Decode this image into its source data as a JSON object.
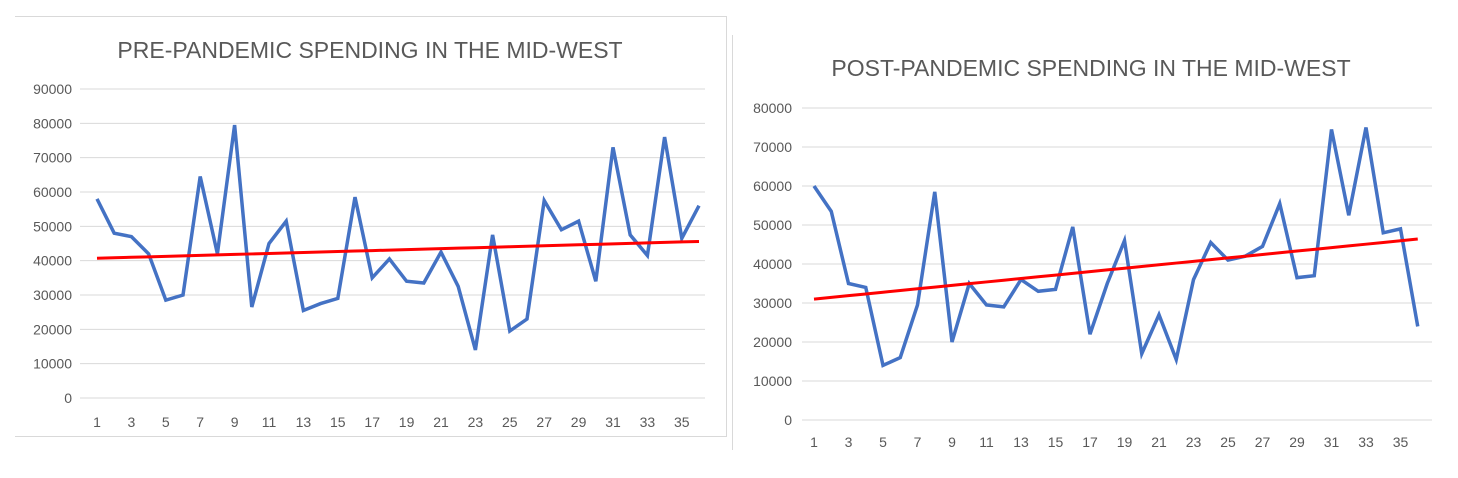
{
  "chart_data": [
    {
      "type": "line",
      "title": "PRE-PANDEMIC SPENDING IN THE MID-WEST",
      "xlabel": "",
      "ylabel": "",
      "ylim": [
        0,
        90000
      ],
      "yticks": [
        "0",
        "10000",
        "20000",
        "30000",
        "40000",
        "50000",
        "60000",
        "70000",
        "80000",
        "90000"
      ],
      "x_tick_labels": [
        "1",
        "3",
        "5",
        "7",
        "9",
        "11",
        "13",
        "15",
        "17",
        "19",
        "21",
        "23",
        "25",
        "27",
        "29",
        "31",
        "33",
        "35"
      ],
      "x": [
        1,
        2,
        3,
        4,
        5,
        6,
        7,
        8,
        9,
        10,
        11,
        12,
        13,
        14,
        15,
        16,
        17,
        18,
        19,
        20,
        21,
        22,
        23,
        24,
        25,
        26,
        27,
        28,
        29,
        30,
        31,
        32,
        33,
        34,
        35,
        36
      ],
      "grid": true,
      "legend": "none",
      "series": [
        {
          "values": [
            58000,
            48000,
            47000,
            42000,
            28500,
            30000,
            64500,
            42000,
            79500,
            26500,
            45000,
            51500,
            25500,
            27500,
            29000,
            58500,
            35000,
            40500,
            34000,
            33500,
            42500,
            32500,
            14000,
            47500,
            19500,
            23000,
            57500,
            49000,
            51500,
            34000,
            73000,
            47500,
            41500,
            76000,
            46500,
            56000
          ],
          "color": "#4472c4"
        },
        {
          "values": [
            40700,
            40840,
            40980,
            41120,
            41260,
            41400,
            41540,
            41680,
            41820,
            41960,
            42100,
            42240,
            42380,
            42520,
            42660,
            42800,
            42940,
            43080,
            43220,
            43360,
            43500,
            43640,
            43780,
            43920,
            44060,
            44200,
            44340,
            44480,
            44620,
            44760,
            44900,
            45040,
            45180,
            45320,
            45460,
            45600
          ],
          "color": "#ff0000"
        }
      ]
    },
    {
      "type": "line",
      "title": "POST-PANDEMIC SPENDING IN THE MID-WEST",
      "xlabel": "",
      "ylabel": "",
      "ylim": [
        0,
        80000
      ],
      "yticks": [
        "0",
        "10000",
        "20000",
        "30000",
        "40000",
        "50000",
        "60000",
        "70000",
        "80000"
      ],
      "x_tick_labels": [
        "1",
        "3",
        "5",
        "7",
        "9",
        "11",
        "13",
        "15",
        "17",
        "19",
        "21",
        "23",
        "25",
        "27",
        "29",
        "31",
        "33",
        "35"
      ],
      "x": [
        1,
        2,
        3,
        4,
        5,
        6,
        7,
        8,
        9,
        10,
        11,
        12,
        13,
        14,
        15,
        16,
        17,
        18,
        19,
        20,
        21,
        22,
        23,
        24,
        25,
        26,
        27,
        28,
        29,
        30,
        31,
        32,
        33,
        34,
        35,
        36
      ],
      "grid": true,
      "legend": "none",
      "series": [
        {
          "values": [
            60000,
            53500,
            35000,
            34000,
            14000,
            16000,
            29500,
            58500,
            20000,
            35000,
            29500,
            29000,
            36000,
            33000,
            33500,
            49500,
            22000,
            35000,
            46000,
            17000,
            27000,
            15500,
            36000,
            45500,
            41000,
            42000,
            44500,
            55500,
            36500,
            37000,
            74500,
            52500,
            75000,
            48000,
            49000,
            24000
          ],
          "color": "#4472c4"
        },
        {
          "values": [
            31000,
            31440,
            31880,
            32320,
            32760,
            33200,
            33640,
            34080,
            34520,
            34960,
            35400,
            35840,
            36280,
            36720,
            37160,
            37600,
            38040,
            38480,
            38920,
            39360,
            39800,
            40240,
            40680,
            41120,
            41560,
            42000,
            42440,
            42880,
            43320,
            43760,
            44200,
            44640,
            45080,
            45520,
            45960,
            46400
          ],
          "color": "#ff0000"
        }
      ]
    }
  ]
}
